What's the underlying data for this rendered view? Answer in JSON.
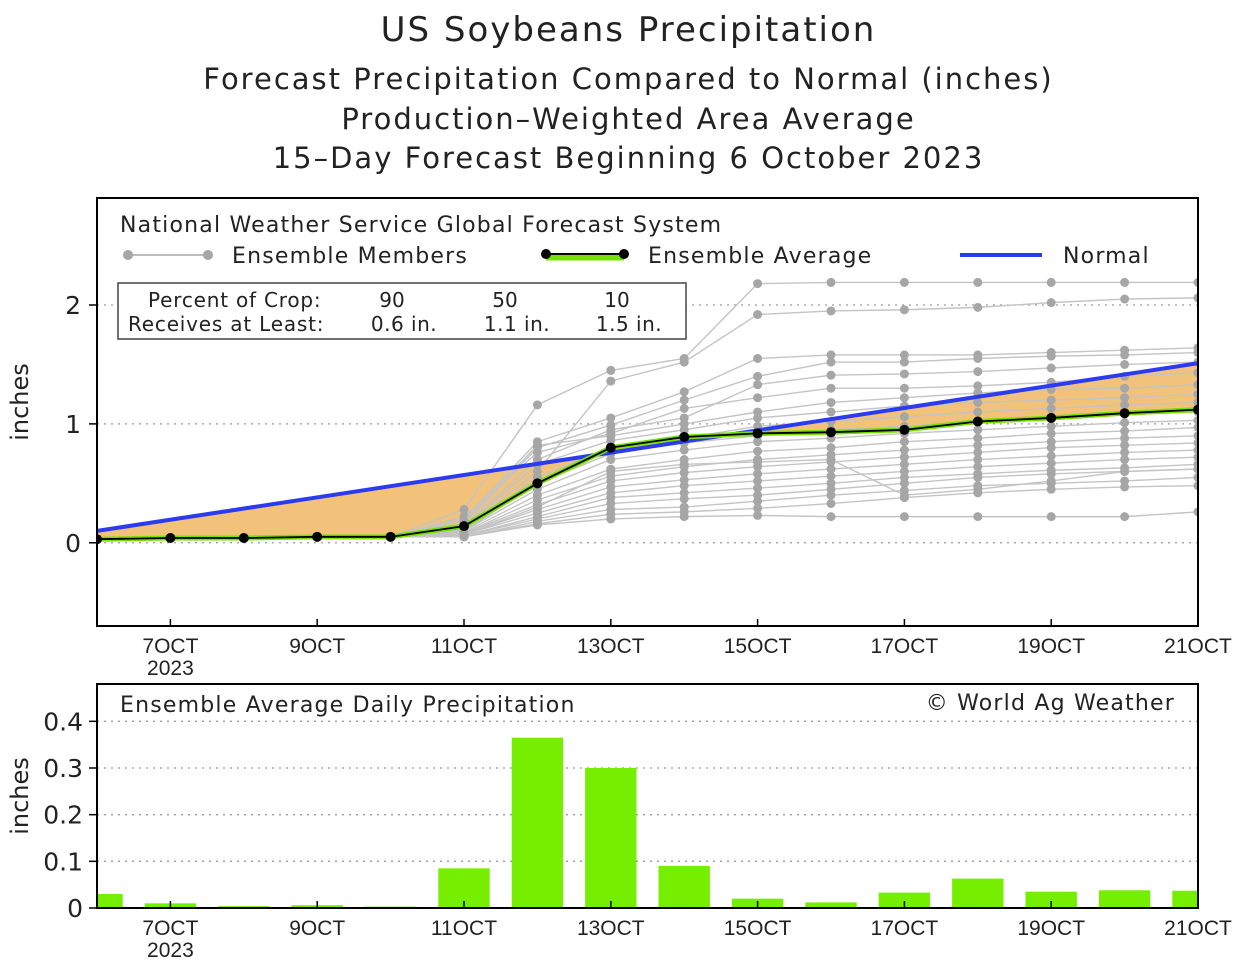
{
  "titles": {
    "main": "US Soybeans Precipitation",
    "line2": "Forecast Precipitation Compared to Normal (inches)",
    "line3": "Production–Weighted Area Average",
    "line4": "15–Day Forecast Beginning 6 October 2023"
  },
  "colors": {
    "normal": "#2b3cf0",
    "shade": "#f2c27a",
    "avg_line": "#000000",
    "legend_avg_band": "#76e000",
    "members": "#a6a6a6",
    "bars": "#76ee00"
  },
  "chart_data": [
    {
      "type": "line",
      "title": "National Weather Service Global Forecast System",
      "ylabel": "inches",
      "xlim": [
        6,
        21
      ],
      "ylim": [
        -0.7,
        2.9
      ],
      "yticks": [
        "0",
        "1",
        "2"
      ],
      "ytick_values": [
        0,
        1,
        2
      ],
      "xticks": [
        "7OCT",
        "9OCT",
        "11OCT",
        "13OCT",
        "15OCT",
        "17OCT",
        "19OCT",
        "21OCT"
      ],
      "xtick_values": [
        7,
        9,
        11,
        13,
        15,
        17,
        19,
        21
      ],
      "xtick_year": "2023",
      "legend": {
        "members": "Ensemble Members",
        "average": "Ensemble Average",
        "normal": "Normal"
      },
      "crop_box": {
        "row1_label": "Percent of Crop:",
        "row2_label": "Receives at Least:",
        "percents": [
          "90",
          "50",
          "10"
        ],
        "amounts": [
          "0.6 in.",
          "1.1 in.",
          "1.5 in."
        ]
      },
      "normal": {
        "x": [
          6,
          21
        ],
        "y": [
          0.1,
          1.51
        ]
      },
      "ensemble_average": {
        "x": [
          6,
          7,
          8,
          9,
          10,
          11,
          12,
          13,
          14,
          15,
          16,
          17,
          18,
          19,
          20,
          21
        ],
        "y": [
          0.03,
          0.04,
          0.04,
          0.05,
          0.05,
          0.14,
          0.5,
          0.8,
          0.89,
          0.92,
          0.93,
          0.95,
          1.02,
          1.05,
          1.09,
          1.12
        ]
      },
      "ensemble_members": [
        [
          0.03,
          0.04,
          0.04,
          0.05,
          0.05,
          0.28,
          1.16,
          1.45,
          1.55,
          2.18,
          2.19,
          2.19,
          2.19,
          2.19,
          2.19,
          2.19
        ],
        [
          0.03,
          0.04,
          0.04,
          0.05,
          0.05,
          0.12,
          0.6,
          1.36,
          1.52,
          1.92,
          1.95,
          1.96,
          1.98,
          2.02,
          2.05,
          2.06
        ],
        [
          0.03,
          0.04,
          0.04,
          0.05,
          0.05,
          0.2,
          0.85,
          1.05,
          1.27,
          1.55,
          1.58,
          1.58,
          1.58,
          1.6,
          1.62,
          1.64
        ],
        [
          0.03,
          0.04,
          0.04,
          0.05,
          0.05,
          0.16,
          0.8,
          0.99,
          1.2,
          1.4,
          1.52,
          1.52,
          1.55,
          1.57,
          1.58,
          1.6
        ],
        [
          0.03,
          0.04,
          0.04,
          0.05,
          0.05,
          0.14,
          0.7,
          0.95,
          1.05,
          1.33,
          1.41,
          1.42,
          1.44,
          1.47,
          1.5,
          1.52
        ],
        [
          0.03,
          0.04,
          0.04,
          0.05,
          0.05,
          0.22,
          0.76,
          0.92,
          1.13,
          1.22,
          1.3,
          1.3,
          1.32,
          1.35,
          1.4,
          1.43
        ],
        [
          0.03,
          0.04,
          0.04,
          0.05,
          0.05,
          0.18,
          0.82,
          0.9,
          1.0,
          1.1,
          1.18,
          1.22,
          1.26,
          1.29,
          1.3,
          1.33
        ],
        [
          0.03,
          0.04,
          0.04,
          0.05,
          0.05,
          0.13,
          0.66,
          0.86,
          0.95,
          1.05,
          1.1,
          1.15,
          1.18,
          1.2,
          1.22,
          1.25
        ],
        [
          0.03,
          0.04,
          0.04,
          0.05,
          0.05,
          0.11,
          0.55,
          0.8,
          0.88,
          0.98,
          1.02,
          1.06,
          1.1,
          1.13,
          1.16,
          1.18
        ],
        [
          0.03,
          0.04,
          0.04,
          0.05,
          0.05,
          0.1,
          0.5,
          0.75,
          0.84,
          0.9,
          0.95,
          0.98,
          1.02,
          1.06,
          1.08,
          1.1
        ],
        [
          0.03,
          0.04,
          0.04,
          0.05,
          0.05,
          0.1,
          0.45,
          0.7,
          0.78,
          0.85,
          0.88,
          0.92,
          0.95,
          0.98,
          1.01,
          1.03
        ],
        [
          0.03,
          0.04,
          0.04,
          0.05,
          0.05,
          0.09,
          0.4,
          0.62,
          0.7,
          0.77,
          0.8,
          0.85,
          0.88,
          0.92,
          0.94,
          0.97
        ],
        [
          0.03,
          0.04,
          0.04,
          0.05,
          0.05,
          0.08,
          0.36,
          0.56,
          0.64,
          0.7,
          0.74,
          0.78,
          0.82,
          0.85,
          0.88,
          0.9
        ],
        [
          0.03,
          0.04,
          0.04,
          0.05,
          0.05,
          0.08,
          0.32,
          0.52,
          0.59,
          0.64,
          0.68,
          0.72,
          0.76,
          0.8,
          0.82,
          0.84
        ],
        [
          0.03,
          0.04,
          0.04,
          0.05,
          0.05,
          0.07,
          0.28,
          0.47,
          0.53,
          0.58,
          0.62,
          0.66,
          0.7,
          0.73,
          0.76,
          0.78
        ],
        [
          0.03,
          0.04,
          0.04,
          0.05,
          0.05,
          0.07,
          0.25,
          0.42,
          0.48,
          0.52,
          0.56,
          0.6,
          0.64,
          0.67,
          0.7,
          0.72
        ],
        [
          0.03,
          0.04,
          0.04,
          0.05,
          0.05,
          0.06,
          0.22,
          0.38,
          0.42,
          0.46,
          0.5,
          0.55,
          0.58,
          0.61,
          0.63,
          0.66
        ],
        [
          0.03,
          0.04,
          0.04,
          0.05,
          0.05,
          0.06,
          0.2,
          0.33,
          0.37,
          0.4,
          0.45,
          0.5,
          0.55,
          0.58,
          0.6,
          0.62
        ],
        [
          0.03,
          0.04,
          0.04,
          0.05,
          0.05,
          0.05,
          0.18,
          0.28,
          0.3,
          0.35,
          0.4,
          0.44,
          0.48,
          0.5,
          0.52,
          0.55
        ],
        [
          0.03,
          0.04,
          0.04,
          0.05,
          0.05,
          0.05,
          0.16,
          0.24,
          0.26,
          0.29,
          0.33,
          0.38,
          0.42,
          0.45,
          0.47,
          0.48
        ],
        [
          0.03,
          0.04,
          0.04,
          0.05,
          0.05,
          0.05,
          0.15,
          0.2,
          0.22,
          0.23,
          0.22,
          0.22,
          0.22,
          0.22,
          0.22,
          0.26
        ],
        [
          0.03,
          0.04,
          0.04,
          0.05,
          0.05,
          0.07,
          0.3,
          0.6,
          0.66,
          0.68,
          0.7,
          0.4,
          0.45,
          0.52,
          0.6,
          0.62
        ]
      ]
    },
    {
      "type": "bar",
      "title": "Ensemble Average Daily Precipitation",
      "credit": "© World Ag Weather",
      "ylabel": "inches",
      "xlim": [
        6,
        21
      ],
      "ylim": [
        0,
        0.48
      ],
      "yticks": [
        "0",
        "0.1",
        "0.2",
        "0.3",
        "0.4"
      ],
      "ytick_values": [
        0,
        0.1,
        0.2,
        0.3,
        0.4
      ],
      "xticks": [
        "7OCT",
        "9OCT",
        "11OCT",
        "13OCT",
        "15OCT",
        "17OCT",
        "19OCT",
        "21OCT"
      ],
      "xtick_values": [
        7,
        9,
        11,
        13,
        15,
        17,
        19,
        21
      ],
      "xtick_year": "2023",
      "x": [
        6,
        7,
        8,
        9,
        10,
        11,
        12,
        13,
        14,
        15,
        16,
        17,
        18,
        19,
        20,
        21
      ],
      "values": [
        0.03,
        0.01,
        0.004,
        0.006,
        0.003,
        0.085,
        0.365,
        0.3,
        0.09,
        0.02,
        0.012,
        0.033,
        0.063,
        0.035,
        0.038,
        0.037
      ]
    }
  ]
}
